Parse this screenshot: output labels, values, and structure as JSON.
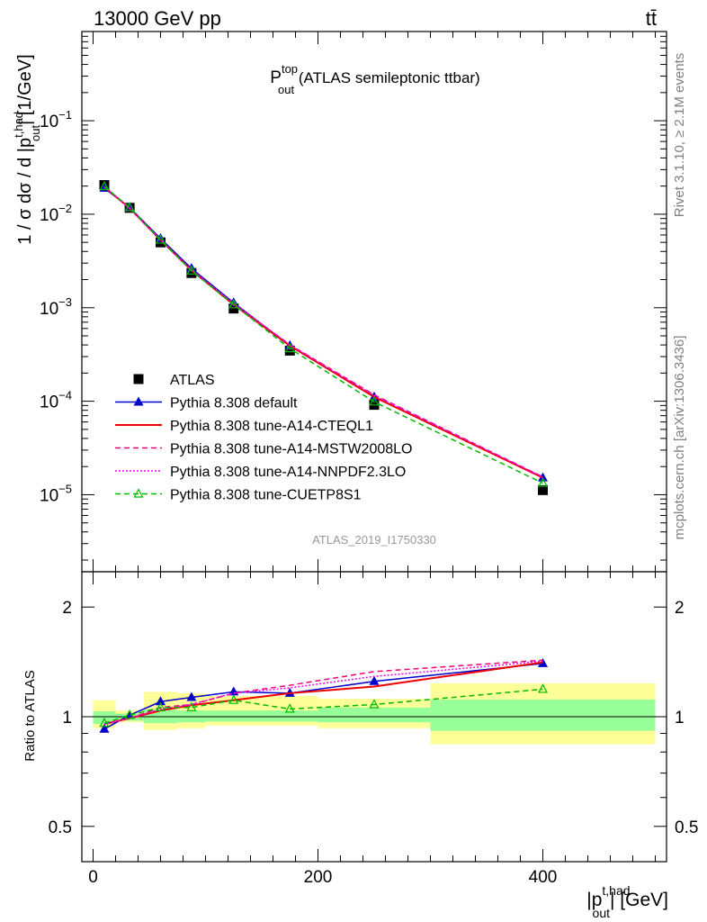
{
  "header": {
    "left": "13000 GeV pp",
    "right": "tt̄"
  },
  "side_labels": {
    "rivet": "Rivet 3.1.10, ≥ 2.1M events",
    "mcplots": "mcplots.cern.ch [arXiv:1306.3436]"
  },
  "chart_data": [
    {
      "type": "line",
      "title": {
        "main": "P",
        "sup": "top",
        "sub": "out",
        "rest": " (ATLAS semileptonic ttbar)"
      },
      "watermark": "ATLAS_2019_I1750330",
      "ylabel": {
        "pre": "1 / σ dσ / d |p",
        "sup": "t,had",
        "sub": "out",
        "post": "| [1/GeV]"
      },
      "yscale": "log",
      "ylim": [
        1.5e-06,
        0.9
      ],
      "xlim": [
        -10,
        510
      ],
      "y_ticks": [
        {
          "base": "10",
          "exp": "−1",
          "value": 0.1
        },
        {
          "base": "10",
          "exp": "−2",
          "value": 0.01
        },
        {
          "base": "10",
          "exp": "−3",
          "value": 0.001
        },
        {
          "base": "10",
          "exp": "−4",
          "value": 0.0001
        },
        {
          "base": "10",
          "exp": "−5",
          "value": 1e-05
        }
      ],
      "legend_position": "bottom-left",
      "series": [
        {
          "name": "ATLAS",
          "color": "#000000",
          "style": "data",
          "marker": "square",
          "x": [
            10,
            32.5,
            60,
            87.5,
            125,
            175,
            250,
            400
          ],
          "y": [
            0.0205,
            0.0117,
            0.005,
            0.00235,
            0.00098,
            0.000348,
            9.15e-05,
            1.12e-05
          ]
        },
        {
          "name": "Pythia 8.308 default",
          "color": "#0000cc",
          "style": "solid",
          "marker": "triangle",
          "x": [
            10,
            32.5,
            60,
            87.5,
            125,
            175,
            250,
            400
          ],
          "y": [
            0.019,
            0.0118,
            0.0055,
            0.00263,
            0.00113,
            0.000393,
            0.000111,
            1.52e-05
          ]
        },
        {
          "name": "Pythia 8.308 tune-A14-CTEQL1",
          "color": "#ee0000",
          "style": "solid",
          "marker": "none",
          "x": [
            10,
            32.5,
            60,
            87.5,
            125,
            175,
            250,
            400
          ],
          "y": [
            0.0196,
            0.0116,
            0.0053,
            0.00252,
            0.00108,
            0.000392,
            0.000111,
            1.52e-05
          ]
        },
        {
          "name": "Pythia 8.308 tune-A14-MSTW2008LO",
          "color": "#ee0077",
          "style": "dashed",
          "marker": "none",
          "x": [
            10,
            32.5,
            60,
            87.5,
            125,
            175,
            250,
            400
          ],
          "y": [
            0.0196,
            0.0116,
            0.0053,
            0.00253,
            0.0011,
            0.000402,
            0.000117,
            1.55e-05
          ]
        },
        {
          "name": "Pythia 8.308 tune-A14-NNPDF2.3LO",
          "color": "#ee00ee",
          "style": "dotted",
          "marker": "none",
          "x": [
            10,
            32.5,
            60,
            87.5,
            125,
            175,
            250,
            400
          ],
          "y": [
            0.0196,
            0.0116,
            0.0053,
            0.00254,
            0.00111,
            0.0004,
            0.000115,
            1.54e-05
          ]
        },
        {
          "name": "Pythia 8.308 tune-CUETP8S1",
          "color": "#00bb00",
          "style": "dashed",
          "marker": "open-triangle",
          "x": [
            10,
            32.5,
            60,
            87.5,
            125,
            175,
            250,
            400
          ],
          "y": [
            0.0198,
            0.0118,
            0.0053,
            0.00248,
            0.00108,
            0.000366,
            9.85e-05,
            1.33e-05
          ]
        }
      ]
    },
    {
      "type": "line",
      "ylabel": "Ratio to ATLAS",
      "xlabel": {
        "pre": "|p",
        "sup": "t,had",
        "sub": "out",
        "post": "| [GeV]"
      },
      "yscale": "log",
      "ylim": [
        0.4,
        2.5
      ],
      "xlim": [
        -10,
        510
      ],
      "y_ticks": [
        {
          "label": "0.5",
          "value": 0.5
        },
        {
          "label": "1",
          "value": 1
        },
        {
          "label": "2",
          "value": 2
        }
      ],
      "x_ticks": [
        {
          "label": "0",
          "value": 0
        },
        {
          "label": "200",
          "value": 200
        },
        {
          "label": "400",
          "value": 400
        }
      ],
      "bands": [
        {
          "x0": 0,
          "x1": 20,
          "inner": [
            0.955,
            1.035
          ],
          "outer": [
            0.93,
            1.11
          ]
        },
        {
          "x0": 20,
          "x1": 45,
          "inner": [
            0.975,
            1.02
          ],
          "outer": [
            0.965,
            1.04
          ]
        },
        {
          "x0": 45,
          "x1": 75,
          "inner": [
            0.96,
            1.045
          ],
          "outer": [
            0.92,
            1.17
          ]
        },
        {
          "x0": 75,
          "x1": 100,
          "inner": [
            0.965,
            1.04
          ],
          "outer": [
            0.93,
            1.16
          ]
        },
        {
          "x0": 100,
          "x1": 150,
          "inner": [
            0.97,
            1.04
          ],
          "outer": [
            0.945,
            1.14
          ]
        },
        {
          "x0": 150,
          "x1": 200,
          "inner": [
            0.97,
            1.04
          ],
          "outer": [
            0.945,
            1.14
          ]
        },
        {
          "x0": 200,
          "x1": 300,
          "inner": [
            0.965,
            1.06
          ],
          "outer": [
            0.93,
            1.12
          ]
        },
        {
          "x0": 300,
          "x1": 500,
          "inner": [
            0.915,
            1.115
          ],
          "outer": [
            0.84,
            1.235
          ]
        }
      ],
      "series": [
        {
          "name": "Pythia 8.308 default",
          "color": "#0000cc",
          "style": "solid",
          "marker": "triangle",
          "x": [
            10,
            32.5,
            60,
            87.5,
            125,
            175,
            250,
            400
          ],
          "y": [
            0.925,
            1.01,
            1.1,
            1.13,
            1.17,
            1.16,
            1.25,
            1.4
          ]
        },
        {
          "name": "Pythia 8.308 tune-A14-CTEQL1",
          "color": "#ee0000",
          "style": "solid",
          "marker": "none",
          "x": [
            10,
            32.5,
            60,
            87.5,
            125,
            175,
            250,
            400
          ],
          "y": [
            0.955,
            0.99,
            1.04,
            1.075,
            1.11,
            1.16,
            1.21,
            1.41
          ]
        },
        {
          "name": "Pythia 8.308 tune-A14-MSTW2008LO",
          "color": "#ee0077",
          "style": "dashed",
          "marker": "none",
          "x": [
            10,
            32.5,
            60,
            87.5,
            125,
            175,
            250,
            400
          ],
          "y": [
            0.955,
            0.99,
            1.06,
            1.08,
            1.16,
            1.22,
            1.33,
            1.43
          ]
        },
        {
          "name": "Pythia 8.308 tune-A14-NNPDF2.3LO",
          "color": "#ee00ee",
          "style": "dotted",
          "marker": "none",
          "x": [
            10,
            32.5,
            60,
            87.5,
            125,
            175,
            250,
            400
          ],
          "y": [
            0.955,
            0.99,
            1.05,
            1.08,
            1.16,
            1.2,
            1.29,
            1.42
          ]
        },
        {
          "name": "Pythia 8.308 tune-CUETP8S1",
          "color": "#00bb00",
          "style": "dashed",
          "marker": "open-triangle",
          "x": [
            10,
            32.5,
            60,
            87.5,
            125,
            175,
            250,
            400
          ],
          "y": [
            0.96,
            1.01,
            1.06,
            1.06,
            1.11,
            1.05,
            1.08,
            1.19
          ]
        }
      ]
    }
  ]
}
